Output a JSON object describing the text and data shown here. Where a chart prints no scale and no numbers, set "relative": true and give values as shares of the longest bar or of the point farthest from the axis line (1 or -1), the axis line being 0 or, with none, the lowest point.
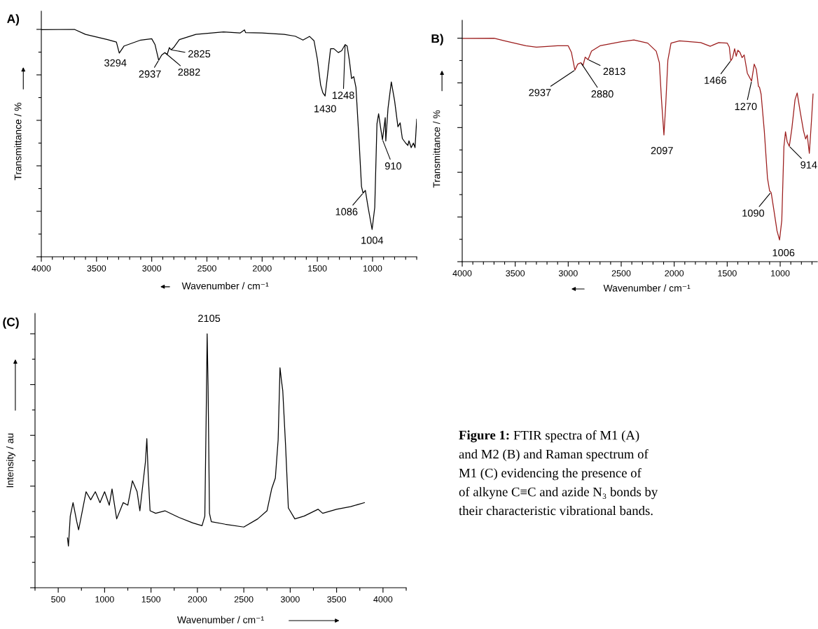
{
  "chart_data": [
    {
      "type": "line",
      "title": "A)",
      "xlabel": "Wavenumber / cm⁻¹",
      "ylabel": "Transmittance / %",
      "relative": true,
      "tick_labels": "x",
      "xlim": [
        4000,
        600
      ],
      "xticks": [
        4000,
        3500,
        3000,
        2500,
        2000,
        1500,
        1000
      ],
      "x": [
        4000,
        3700,
        3600,
        3400,
        3320,
        3294,
        3250,
        3100,
        3000,
        2970,
        2937,
        2910,
        2882,
        2860,
        2840,
        2825,
        2800,
        2750,
        2600,
        2350,
        2200,
        2160,
        2150,
        2000,
        1800,
        1700,
        1630,
        1570,
        1530,
        1500,
        1470,
        1450,
        1430,
        1410,
        1380,
        1350,
        1310,
        1280,
        1248,
        1230,
        1210,
        1190,
        1170,
        1150,
        1120,
        1100,
        1086,
        1065,
        1040,
        1004,
        980,
        960,
        945,
        925,
        910,
        895,
        885,
        880,
        860,
        830,
        800,
        770,
        750,
        730,
        700,
        680,
        670,
        650,
        630,
        615,
        600
      ],
      "series": [
        {
          "color": "#000000",
          "values": [
            0.999,
            1.0,
            0.978,
            0.955,
            0.944,
            0.896,
            0.927,
            0.953,
            0.959,
            0.933,
            0.864,
            0.887,
            0.898,
            0.89,
            0.92,
            0.91,
            0.921,
            0.955,
            0.978,
            0.989,
            0.984,
            0.998,
            0.986,
            0.984,
            0.978,
            0.97,
            0.953,
            0.969,
            0.95,
            0.87,
            0.755,
            0.721,
            0.707,
            0.789,
            0.915,
            0.915,
            0.898,
            0.906,
            0.933,
            0.927,
            0.864,
            0.784,
            0.792,
            0.744,
            0.492,
            0.309,
            0.28,
            0.292,
            0.217,
            0.12,
            0.217,
            0.584,
            0.629,
            0.561,
            0.515,
            0.572,
            0.612,
            0.509,
            0.652,
            0.769,
            0.686,
            0.572,
            0.589,
            0.52,
            0.5,
            0.49,
            0.51,
            0.48,
            0.5,
            0.48,
            0.605
          ]
        }
      ],
      "annotations": [
        {
          "text": "3294",
          "x": 3294,
          "y": 0.896
        },
        {
          "text": "2937",
          "x": 2937,
          "y": 0.864
        },
        {
          "text": "2882",
          "x": 2882,
          "y": 0.898
        },
        {
          "text": "2825",
          "x": 2825,
          "y": 0.91
        },
        {
          "text": "1430",
          "x": 1430,
          "y": 0.707
        },
        {
          "text": "1248",
          "x": 1248,
          "y": 0.933
        },
        {
          "text": "1086",
          "x": 1086,
          "y": 0.28
        },
        {
          "text": "1004",
          "x": 1004,
          "y": 0.12
        },
        {
          "text": "910",
          "x": 910,
          "y": 0.515
        }
      ]
    },
    {
      "type": "line",
      "title": "B)",
      "xlabel": "Wavenumber / cm⁻¹",
      "ylabel": "Transmittance / %",
      "relative": true,
      "tick_labels": "x",
      "xlim": [
        4000,
        650
      ],
      "xticks": [
        4000,
        3500,
        3000,
        2500,
        2000,
        1500,
        1000
      ],
      "x": [
        4000,
        3700,
        3600,
        3400,
        3300,
        3100,
        3000,
        2970,
        2937,
        2910,
        2880,
        2860,
        2840,
        2813,
        2780,
        2700,
        2500,
        2380,
        2250,
        2170,
        2140,
        2120,
        2097,
        2080,
        2060,
        2030,
        1950,
        1750,
        1660,
        1580,
        1500,
        1480,
        1466,
        1450,
        1430,
        1415,
        1400,
        1380,
        1360,
        1340,
        1310,
        1270,
        1245,
        1225,
        1205,
        1195,
        1180,
        1150,
        1120,
        1100,
        1085,
        1060,
        1030,
        1006,
        985,
        965,
        950,
        935,
        914,
        890,
        860,
        840,
        810,
        780,
        760,
        745,
        725,
        705,
        690
      ],
      "series": [
        {
          "color": "#9b1b1b",
          "values": [
            0.999,
            1.0,
            0.988,
            0.966,
            0.96,
            0.966,
            0.966,
            0.937,
            0.857,
            0.884,
            0.89,
            0.878,
            0.915,
            0.904,
            0.942,
            0.966,
            0.984,
            0.992,
            0.978,
            0.942,
            0.89,
            0.725,
            0.567,
            0.702,
            0.901,
            0.978,
            0.988,
            0.98,
            0.964,
            0.98,
            0.978,
            0.96,
            0.899,
            0.911,
            0.953,
            0.919,
            0.946,
            0.937,
            0.913,
            0.925,
            0.843,
            0.808,
            0.884,
            0.86,
            0.784,
            0.78,
            0.749,
            0.585,
            0.374,
            0.317,
            0.309,
            0.232,
            0.138,
            0.097,
            0.185,
            0.514,
            0.581,
            0.538,
            0.516,
            0.596,
            0.725,
            0.755,
            0.667,
            0.585,
            0.549,
            0.567,
            0.485,
            0.631,
            0.75
          ]
        }
      ],
      "annotations": [
        {
          "text": "2937",
          "x": 2937,
          "y": 0.857
        },
        {
          "text": "2880",
          "x": 2880,
          "y": 0.89
        },
        {
          "text": "2813",
          "x": 2813,
          "y": 0.904
        },
        {
          "text": "2097",
          "x": 2097,
          "y": 0.567
        },
        {
          "text": "1466",
          "x": 1466,
          "y": 0.899
        },
        {
          "text": "1270",
          "x": 1270,
          "y": 0.808
        },
        {
          "text": "1090",
          "x": 1090,
          "y": 0.309
        },
        {
          "text": "1006",
          "x": 1006,
          "y": 0.097
        },
        {
          "text": "914",
          "x": 914,
          "y": 0.516
        }
      ]
    },
    {
      "type": "line",
      "title": "(C)",
      "xlabel": "Wavenumber / cm⁻¹",
      "ylabel": "Intensity / au",
      "relative": true,
      "tick_labels": "x",
      "xlim": [
        250,
        4250
      ],
      "xticks": [
        500,
        1000,
        1500,
        2000,
        2500,
        3000,
        3500,
        4000
      ],
      "x": [
        600,
        610,
        630,
        660,
        700,
        720,
        760,
        800,
        850,
        900,
        950,
        1000,
        1050,
        1080,
        1130,
        1200,
        1250,
        1300,
        1350,
        1380,
        1420,
        1440,
        1455,
        1470,
        1490,
        1550,
        1650,
        1800,
        1950,
        2050,
        2080,
        2095,
        2105,
        2115,
        2130,
        2150,
        2300,
        2500,
        2650,
        2750,
        2800,
        2840,
        2870,
        2890,
        2905,
        2920,
        2950,
        2980,
        3050,
        3150,
        3300,
        3350,
        3500,
        3650,
        3800
      ],
      "series": [
        {
          "color": "#000000",
          "values": [
            0.196,
            0.164,
            0.282,
            0.335,
            0.26,
            0.228,
            0.303,
            0.378,
            0.346,
            0.378,
            0.335,
            0.378,
            0.325,
            0.389,
            0.271,
            0.335,
            0.325,
            0.421,
            0.378,
            0.303,
            0.432,
            0.496,
            0.587,
            0.443,
            0.303,
            0.293,
            0.303,
            0.277,
            0.255,
            0.244,
            0.282,
            0.689,
            1.0,
            0.794,
            0.293,
            0.26,
            0.25,
            0.239,
            0.271,
            0.303,
            0.389,
            0.432,
            0.582,
            0.866,
            0.818,
            0.775,
            0.561,
            0.314,
            0.271,
            0.282,
            0.309,
            0.293,
            0.309,
            0.319,
            0.335
          ]
        }
      ],
      "annotations": [
        {
          "text": "2105",
          "x": 2105,
          "y": 1.0
        }
      ]
    },
    {
      "type": "other",
      "title": "Figure 1:",
      "annotations": [
        "FTIR spectra of M1 (A)\nand M2 (B) and Raman spectrum of\nM1 (C) evidencing the presence of\nof alkyne C≡C and azide N₃ bonds by\ntheir characteristic vibrational bands."
      ]
    }
  ]
}
